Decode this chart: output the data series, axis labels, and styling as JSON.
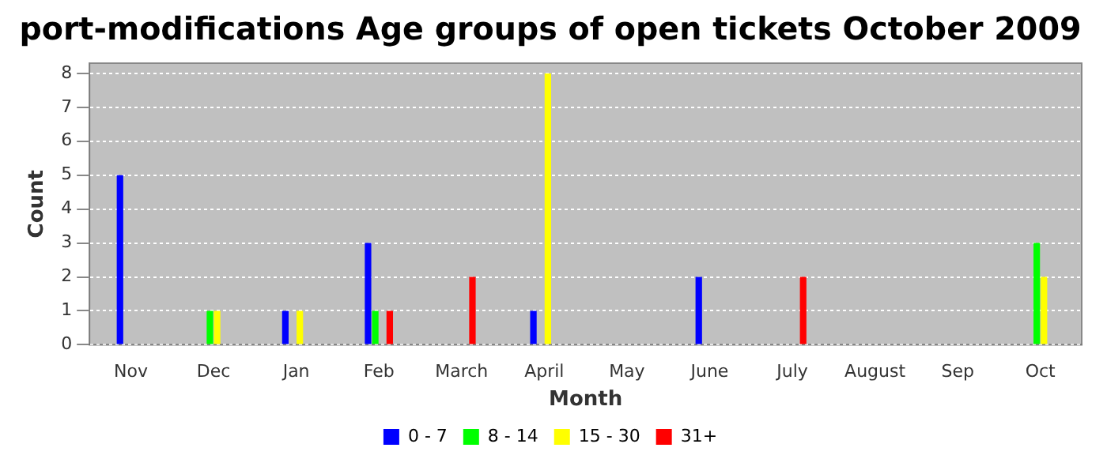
{
  "chart_data": {
    "type": "bar",
    "title": "port-modifications Age groups of open tickets October 2009",
    "xlabel": "Month",
    "ylabel": "Count",
    "categories": [
      "Nov",
      "Dec",
      "Jan",
      "Feb",
      "March",
      "April",
      "May",
      "June",
      "July",
      "August",
      "Sep",
      "Oct"
    ],
    "series": [
      {
        "name": "0 - 7",
        "color": "#0000ff",
        "values": [
          5,
          0,
          1,
          3,
          0,
          1,
          0,
          2,
          0,
          0,
          0,
          0
        ]
      },
      {
        "name": "8 - 14",
        "color": "#00ff00",
        "values": [
          0,
          1,
          0,
          1,
          0,
          0,
          0,
          0,
          0,
          0,
          0,
          3
        ]
      },
      {
        "name": "15 - 30",
        "color": "#ffff00",
        "values": [
          0,
          1,
          1,
          0,
          0,
          8,
          0,
          0,
          0,
          0,
          0,
          2
        ]
      },
      {
        "name": "31+",
        "color": "#ff0000",
        "values": [
          0,
          0,
          0,
          1,
          2,
          0,
          0,
          0,
          2,
          0,
          0,
          0
        ]
      }
    ],
    "ylim": [
      0,
      8.3
    ],
    "yticks": [
      0,
      1,
      2,
      3,
      4,
      5,
      6,
      7,
      8
    ],
    "grid": "y",
    "legend": "bottom"
  }
}
